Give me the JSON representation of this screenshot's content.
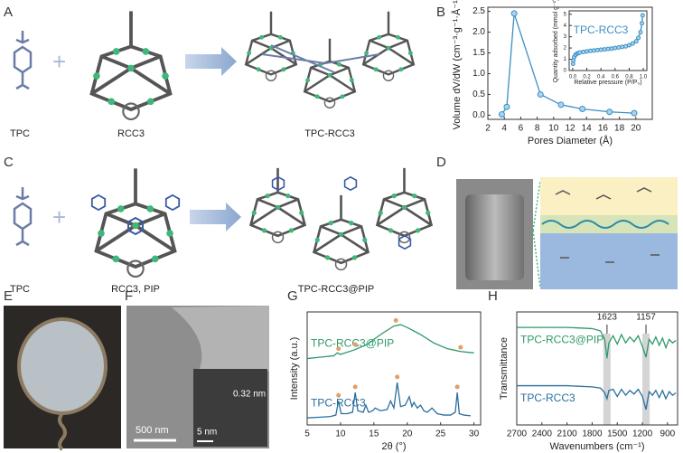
{
  "panels": {
    "A": {
      "label": "A",
      "texts": [
        "TPC",
        "RCC3",
        "TPC-RCC3"
      ]
    },
    "B": {
      "label": "B"
    },
    "C": {
      "label": "C",
      "texts": [
        "TPC",
        "RCC3, PIP",
        "TPC-RCC3@PIP"
      ]
    },
    "D": {
      "label": "D"
    },
    "E": {
      "label": "E"
    },
    "F": {
      "label": "F",
      "texts": [
        "500 nm",
        "5 nm",
        "0.32 nm"
      ]
    },
    "G": {
      "label": "G"
    },
    "H": {
      "label": "H"
    }
  },
  "chart_data": [
    {
      "type": "line",
      "x_label": "Pores Diameter (Å)",
      "y_label": "Volume dV/dW (cm⁻³·g⁻¹·Å⁻¹)",
      "xlim": [
        2,
        22
      ],
      "xticks": [
        2,
        4,
        6,
        8,
        10,
        12,
        14,
        16,
        18,
        20
      ],
      "ylim": [
        -0.1,
        2.6
      ],
      "yticks": [
        {
          "value": 0,
          "label": "0.0"
        },
        0.5,
        {
          "value": 1,
          "label": "1.0"
        },
        1.5,
        {
          "value": 2,
          "label": "2.0"
        },
        2.5
      ],
      "series": [
        {
          "color": "#3b8fc4",
          "markers": true,
          "x": [
            3.7,
            4.3,
            5.2,
            8.4,
            10.9,
            13.5,
            16.8,
            19.8
          ],
          "values": [
            0.02,
            0.2,
            2.45,
            0.5,
            0.25,
            0.15,
            0.08,
            0.05
          ]
        }
      ]
    },
    {
      "type": "line",
      "label": "TPC-RCC3",
      "x_label": "Relative pressure (P/P₀)",
      "y_label": "Quantity adsorbed (mmol g⁻¹)",
      "xlim": [
        -0.05,
        1.05
      ],
      "xticks": [
        {
          "value": 0,
          "label": "0.0"
        },
        0.2,
        0.4,
        0.6,
        0.8,
        {
          "value": 1,
          "label": "1.0"
        }
      ],
      "ylim": [
        0,
        5.3
      ],
      "yticks": [
        0,
        1,
        2,
        3,
        4,
        5
      ],
      "series": [
        {
          "color": "#3b8fc4",
          "markers": true,
          "x": [
            0.005,
            0.01,
            0.02,
            0.04,
            0.06,
            0.08,
            0.1,
            0.15,
            0.2,
            0.25,
            0.3,
            0.35,
            0.4,
            0.45,
            0.5,
            0.55,
            0.6,
            0.65,
            0.7,
            0.75,
            0.8,
            0.85,
            0.9,
            0.93,
            0.96,
            0.98,
            0.99
          ],
          "values": [
            0.6,
            0.9,
            1.2,
            1.4,
            1.5,
            1.55,
            1.6,
            1.65,
            1.7,
            1.75,
            1.78,
            1.82,
            1.85,
            1.88,
            1.92,
            1.95,
            2.0,
            2.05,
            2.1,
            2.15,
            2.25,
            2.4,
            2.6,
            2.9,
            3.4,
            4.2,
            4.9
          ]
        }
      ]
    },
    {
      "type": "line",
      "x_label": "2θ (°)",
      "y_label": "Intensity (a.u.)",
      "xlim": [
        5,
        31
      ],
      "xticks": [
        5,
        10,
        15,
        20,
        25,
        30
      ],
      "ylim": [
        0.5,
        8.5
      ],
      "series": [
        {
          "name": "TPC-RCC3@PIP",
          "color": "#2e9a68",
          "x": [
            5,
            7,
            9,
            9.5,
            10,
            12,
            14,
            16,
            18,
            19,
            20,
            22,
            24,
            26,
            28,
            30
          ],
          "values": [
            5.2,
            5.3,
            5.4,
            5.6,
            5.5,
            5.8,
            6.2,
            6.9,
            7.5,
            7.6,
            7.4,
            6.9,
            6.3,
            5.9,
            5.7,
            5.6
          ]
        },
        {
          "name": "TPC-RCC3",
          "color": "#2a6f9e",
          "x": [
            5,
            7,
            8.5,
            9.3,
            9.7,
            10.1,
            11,
            11.8,
            12.2,
            12.6,
            13.4,
            13.8,
            14.2,
            14.8,
            15.2,
            16,
            17,
            17.5,
            18,
            18.5,
            19,
            19.7,
            20.3,
            20.7,
            21,
            21.5,
            22,
            22.5,
            23,
            23.7,
            24.5,
            25.5,
            26.5,
            27.2,
            27.5,
            27.8,
            28.5,
            29.5
          ],
          "values": [
            1.0,
            1.05,
            1.1,
            1.2,
            2.2,
            1.3,
            1.3,
            1.4,
            2.8,
            1.5,
            1.4,
            1.9,
            1.4,
            1.5,
            1.7,
            1.5,
            1.6,
            2.2,
            1.7,
            3.5,
            1.8,
            1.9,
            2.5,
            1.8,
            2.1,
            1.7,
            1.9,
            1.5,
            1.4,
            1.7,
            1.3,
            1.2,
            1.2,
            1.4,
            2.8,
            1.3,
            1.2,
            1.15
          ]
        }
      ],
      "peak_markers": [
        {
          "color": "#e0a06a",
          "x": [
            9.7,
            12.2,
            18.3,
            28
          ],
          "y": [
            5.9,
            6.2,
            7.9,
            6.0
          ]
        },
        {
          "color": "#e0a06a",
          "x": [
            9.7,
            12.2,
            18.5,
            27.5
          ],
          "y": [
            2.6,
            3.2,
            3.9,
            3.2
          ]
        }
      ]
    },
    {
      "type": "line",
      "x_label": "Wavenumbers (cm⁻¹)",
      "y_label": "Transmittance",
      "xlim": [
        2700,
        780
      ],
      "xticks": [
        2700,
        2400,
        2100,
        1800,
        1500,
        1200,
        900
      ],
      "ylim": [
        0,
        9.5
      ],
      "annotations": [
        1623,
        1157
      ],
      "series": [
        {
          "name": "TPC-RCC3@PIP",
          "color": "#2e9a68",
          "x": [
            2700,
            2400,
            2100,
            1800,
            1700,
            1650,
            1623,
            1600,
            1550,
            1500,
            1450,
            1400,
            1350,
            1300,
            1250,
            1200,
            1157,
            1120,
            1080,
            1040,
            1000,
            960,
            920,
            880,
            840,
            800
          ],
          "values": [
            8.2,
            8.2,
            8.2,
            8.1,
            7.9,
            7.2,
            5.6,
            6.9,
            7.5,
            6.8,
            7.6,
            6.9,
            7.4,
            7.0,
            7.5,
            6.6,
            5.7,
            7.2,
            6.8,
            7.4,
            6.7,
            7.3,
            6.5,
            7.2,
            6.9,
            7.1
          ]
        },
        {
          "name": "TPC-RCC3",
          "color": "#2a6f9e",
          "x": [
            2700,
            2400,
            2100,
            1800,
            1700,
            1650,
            1623,
            1600,
            1550,
            1500,
            1450,
            1400,
            1350,
            1300,
            1250,
            1200,
            1157,
            1120,
            1080,
            1040,
            1000,
            960,
            920,
            880,
            840,
            800
          ],
          "values": [
            3.3,
            3.3,
            3.3,
            3.2,
            3.1,
            2.7,
            2.2,
            2.9,
            3.0,
            2.4,
            3.0,
            2.5,
            2.9,
            2.6,
            3.0,
            2.4,
            1.3,
            2.8,
            2.5,
            2.9,
            2.3,
            2.9,
            2.2,
            2.8,
            2.5,
            2.7
          ]
        }
      ]
    }
  ]
}
